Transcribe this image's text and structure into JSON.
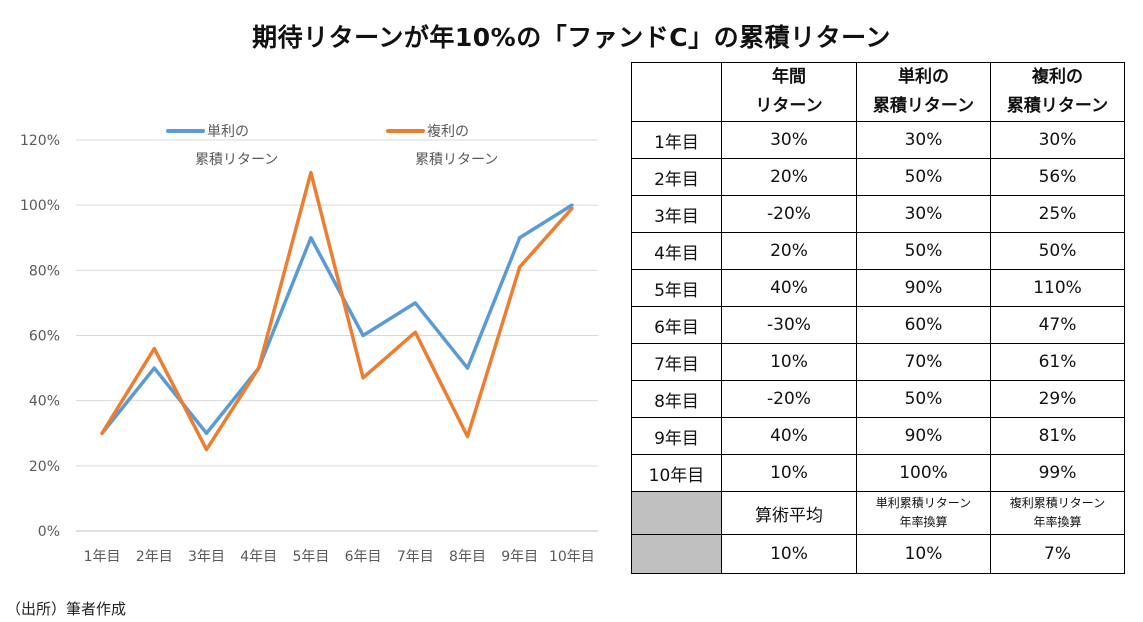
{
  "title": "期待リターンが年10%の「ファンドC」の累積リターン",
  "source": "（出所）筆者作成",
  "chart_data": {
    "type": "line",
    "categories": [
      "1年目",
      "2年目",
      "3年目",
      "4年目",
      "5年目",
      "6年目",
      "7年目",
      "8年目",
      "9年目",
      "10年目"
    ],
    "series": [
      {
        "name": "単利の累積リターン",
        "legend_lines": [
          "単利の",
          "累積リターン"
        ],
        "color": "#5b9bd5",
        "values": [
          30,
          50,
          30,
          50,
          90,
          60,
          70,
          50,
          90,
          100
        ]
      },
      {
        "name": "複利の累積リターン",
        "legend_lines": [
          "複利の",
          "累積リターン"
        ],
        "color": "#ed7d31",
        "values": [
          30,
          56,
          25,
          50,
          110,
          47,
          61,
          29,
          81,
          99
        ]
      }
    ],
    "yticks": [
      "0%",
      "20%",
      "40%",
      "60%",
      "80%",
      "100%",
      "120%"
    ],
    "ylim": [
      0,
      120
    ],
    "grid": true,
    "legend": "top"
  },
  "table": {
    "headers": [
      {
        "l1": "年間",
        "l2": "リターン"
      },
      {
        "l1": "単利の",
        "l2": "累積リターン"
      },
      {
        "l1": "複利の",
        "l2": "累積リターン"
      }
    ],
    "rows": [
      [
        "1年目",
        "30%",
        "30%",
        "30%"
      ],
      [
        "2年目",
        "20%",
        "50%",
        "56%"
      ],
      [
        "3年目",
        "-20%",
        "30%",
        "25%"
      ],
      [
        "4年目",
        "20%",
        "50%",
        "50%"
      ],
      [
        "5年目",
        "40%",
        "90%",
        "110%"
      ],
      [
        "6年目",
        "-30%",
        "60%",
        "47%"
      ],
      [
        "7年目",
        "10%",
        "70%",
        "61%"
      ],
      [
        "8年目",
        "-20%",
        "50%",
        "29%"
      ],
      [
        "9年目",
        "40%",
        "90%",
        "81%"
      ],
      [
        "10年目",
        "10%",
        "100%",
        "99%"
      ]
    ],
    "summary_labels": {
      "average": "算術平均",
      "simple_l1": "単利累積リターン",
      "simple_l2": "年率換算",
      "compound_l1": "複利累積リターン",
      "compound_l2": "年率換算"
    },
    "summary_values": [
      "10%",
      "10%",
      "7%"
    ]
  }
}
